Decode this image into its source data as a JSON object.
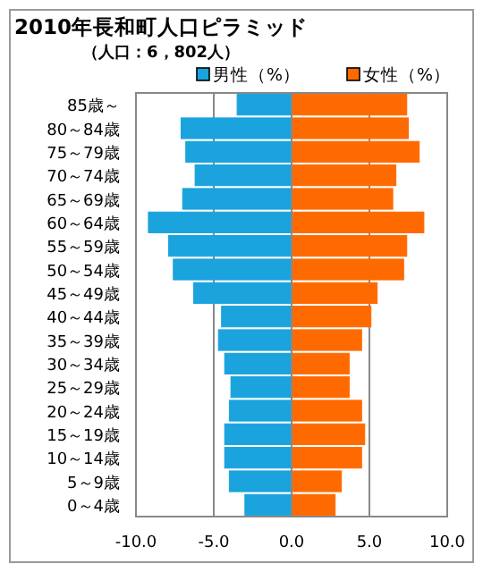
{
  "chart_data": {
    "type": "bar",
    "orientation": "horizontal",
    "title": "2010年長和町人口ピラミッド",
    "subtitle": "（人口：6，802人）",
    "categories": [
      "85歳～",
      "80～84歳",
      "75～79歳",
      "70～74歳",
      "65～69歳",
      "60～64歳",
      "55～59歳",
      "50～54歳",
      "45～49歳",
      "40～44歳",
      "35～39歳",
      "30～34歳",
      "25～29歳",
      "20～24歳",
      "15～19歳",
      "10～14歳",
      "5～9歳",
      "0～4歳"
    ],
    "series": [
      {
        "name": "男性（%）",
        "color": "#1aa3dc",
        "values": [
          -3.5,
          -7.1,
          -6.8,
          -6.2,
          -7.0,
          -9.2,
          -7.9,
          -7.6,
          -6.3,
          -4.5,
          -4.7,
          -4.3,
          -3.9,
          -4.0,
          -4.3,
          -4.3,
          -4.0,
          -3.0
        ]
      },
      {
        "name": "女性（%）",
        "color": "#ff6a00",
        "values": [
          7.4,
          7.5,
          8.2,
          6.7,
          6.5,
          8.5,
          7.4,
          7.2,
          5.5,
          5.1,
          4.5,
          3.7,
          3.7,
          4.5,
          4.7,
          4.5,
          3.2,
          2.8
        ]
      }
    ],
    "xlim": [
      -10,
      10
    ],
    "xticks": [
      {
        "value": -10,
        "label": "-10.0"
      },
      {
        "value": -5,
        "label": "-5.0"
      },
      {
        "value": 0,
        "label": "0.0"
      },
      {
        "value": 5,
        "label": "5.0"
      },
      {
        "value": 10,
        "label": "10.0"
      }
    ],
    "grid": "x",
    "legend": "top",
    "stacked": true
  }
}
